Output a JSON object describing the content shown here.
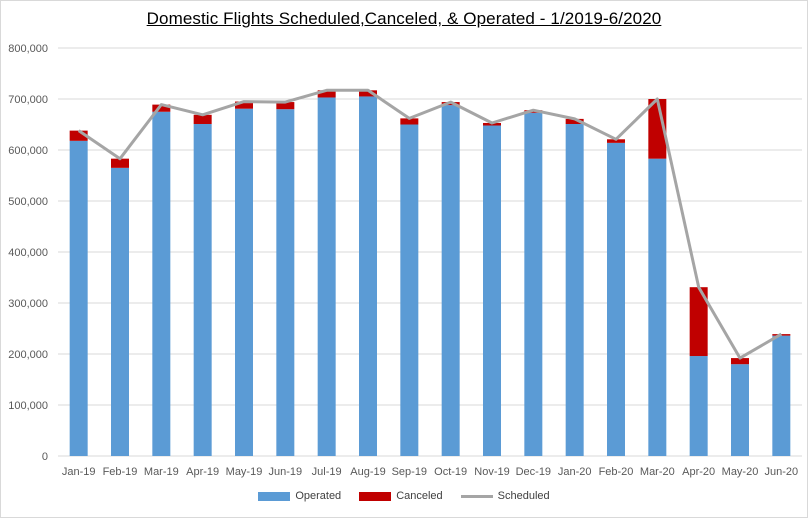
{
  "chart_data": {
    "type": "bar",
    "title": "Domestic Flights Scheduled,Canceled, & Operated -  1/2019-6/2020",
    "xlabel": "",
    "ylabel": "",
    "ylim": [
      0,
      800000
    ],
    "yticks": [
      0,
      100000,
      200000,
      300000,
      400000,
      500000,
      600000,
      700000,
      800000
    ],
    "ytick_labels": [
      "0",
      "100,000",
      "200,000",
      "300,000",
      "400,000",
      "500,000",
      "600,000",
      "700,000",
      "800,000"
    ],
    "grid": true,
    "legend_position": "bottom",
    "stacked": true,
    "categories": [
      "Jan-19",
      "Feb-19",
      "Mar-19",
      "Apr-19",
      "May-19",
      "Jun-19",
      "Jul-19",
      "Aug-19",
      "Sep-19",
      "Oct-19",
      "Nov-19",
      "Dec-19",
      "Jan-20",
      "Feb-20",
      "Mar-20",
      "Apr-20",
      "May-20",
      "Jun-20"
    ],
    "series": [
      {
        "name": "Operated",
        "type": "bar",
        "color": "#5b9bd5",
        "values": [
          618000,
          565000,
          675000,
          651000,
          681000,
          680000,
          703000,
          705000,
          650000,
          688000,
          648000,
          673000,
          651000,
          614000,
          583000,
          196000,
          180000,
          236000
        ]
      },
      {
        "name": "Canceled",
        "type": "bar",
        "color": "#c00000",
        "values": [
          20000,
          18000,
          14000,
          18000,
          14000,
          14000,
          14000,
          12000,
          12000,
          6000,
          5000,
          5000,
          10000,
          7000,
          117000,
          135000,
          12000,
          3000
        ]
      },
      {
        "name": "Scheduled",
        "type": "line",
        "color": "#a5a5a5",
        "values": [
          638000,
          583000,
          689000,
          669000,
          695000,
          694000,
          717000,
          717000,
          662000,
          694000,
          653000,
          678000,
          661000,
          621000,
          700000,
          331000,
          192000,
          239000
        ]
      }
    ]
  }
}
